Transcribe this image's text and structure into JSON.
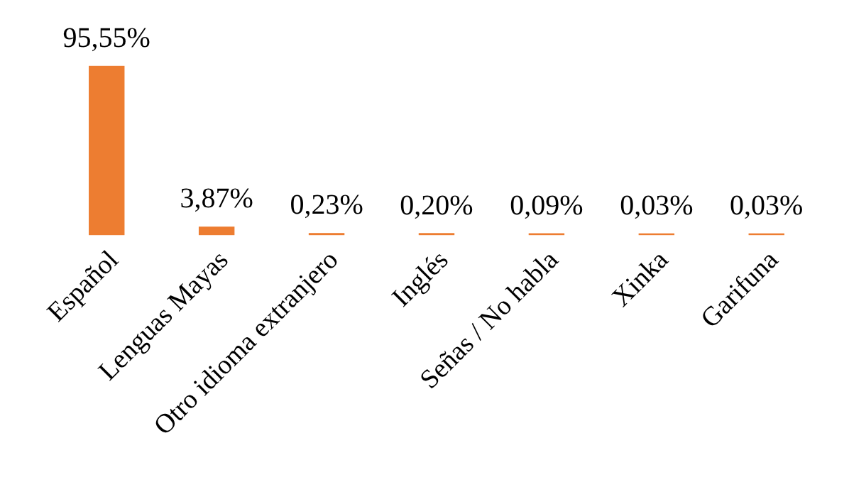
{
  "chart_data": {
    "type": "bar",
    "categories": [
      "Español",
      "Lenguas Mayas",
      "Otro idioma extranjero",
      "Inglés",
      "Señas / No habla",
      "Xinka",
      "Garifuna"
    ],
    "values": [
      95.55,
      3.87,
      0.23,
      0.2,
      0.09,
      0.03,
      0.03
    ],
    "value_labels": [
      "95,55%",
      "3,87%",
      "0,23%",
      "0,20%",
      "0,09%",
      "0,03%",
      "0,03%"
    ],
    "color": "#ed7d31"
  }
}
